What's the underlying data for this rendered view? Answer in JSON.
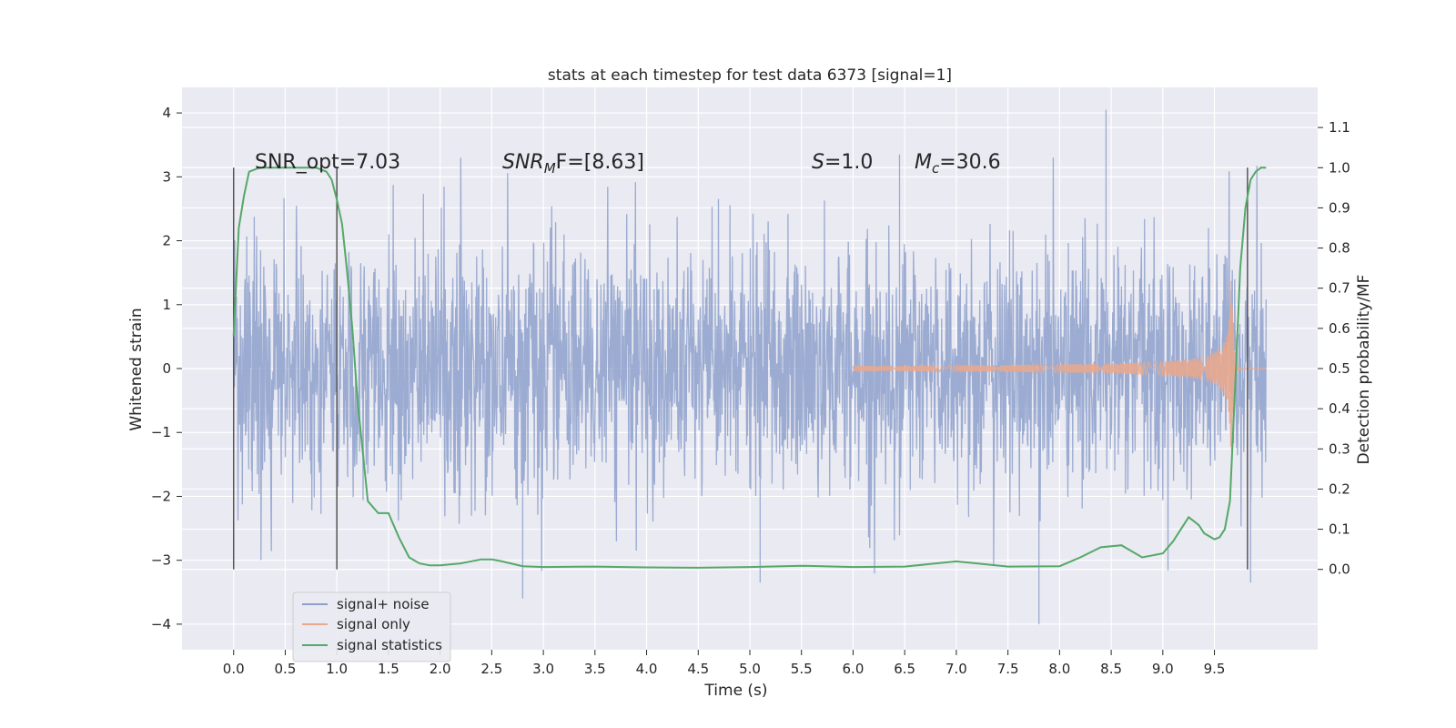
{
  "chart_data": {
    "type": "line",
    "title": "stats at each timestep for test data 6373 [signal=1]",
    "xlabel": "Time (s)",
    "ylabel": "Whitened strain",
    "ylabel_right": "Detection probability/MF",
    "xlim": [
      -0.5,
      10.5
    ],
    "ylim": [
      -4.4,
      4.4
    ],
    "ylim_right": [
      -0.2,
      1.2
    ],
    "x_ticks": [
      "0.0",
      "0.5",
      "1.0",
      "1.5",
      "2.0",
      "2.5",
      "3.0",
      "3.5",
      "4.0",
      "4.5",
      "5.0",
      "5.5",
      "6.0",
      "6.5",
      "7.0",
      "7.5",
      "8.0",
      "8.5",
      "9.0",
      "9.5"
    ],
    "x_tick_values": [
      0,
      0.5,
      1,
      1.5,
      2,
      2.5,
      3,
      3.5,
      4,
      4.5,
      5,
      5.5,
      6,
      6.5,
      7,
      7.5,
      8,
      8.5,
      9,
      9.5
    ],
    "y_ticks": [
      "4",
      "3",
      "2",
      "1",
      "0",
      "−1",
      "−2",
      "−3",
      "−4"
    ],
    "y_tick_values": [
      4,
      3,
      2,
      1,
      0,
      -1,
      -2,
      -3,
      -4
    ],
    "y_right_ticks": [
      "0.0",
      "0.1",
      "0.2",
      "0.3",
      "0.4",
      "0.5",
      "0.6",
      "0.7",
      "0.8",
      "0.9",
      "1.0",
      "1.1"
    ],
    "y_right_tick_values": [
      0,
      0.1,
      0.2,
      0.3,
      0.4,
      0.5,
      0.6,
      0.7,
      0.8,
      0.9,
      1.0,
      1.1
    ],
    "grid": true,
    "legend_position": "lower-left",
    "annotations": {
      "snr_opt": "SNR_opt=7.03",
      "snr_mf_base": "SNR",
      "snr_mf_sub": "M",
      "snr_mf_rest": "F=[8.63]",
      "s_var": "S",
      "s_rest": "=1.0",
      "mc_var": "M",
      "mc_sub": "c",
      "mc_rest": "=30.6"
    },
    "vertical_markers": [
      0.0,
      1.0,
      9.82
    ],
    "series": [
      {
        "name": "signal+ noise",
        "axis": "left",
        "color": "#8da0cb",
        "description_range": [
          0,
          10
        ],
        "typical_amplitude": 1.3,
        "peak_max": 4.05,
        "peak_min": -4.0
      },
      {
        "name": "signal only",
        "axis": "left",
        "color": "#e8a98e",
        "chirp_start": 6.0,
        "chirp_peak_time": 9.67,
        "chirp_peak_amplitude": 1.4
      },
      {
        "name": "signal statistics",
        "axis": "right",
        "color": "#55a868",
        "x": [
          0.0,
          0.05,
          0.1,
          0.15,
          0.25,
          0.4,
          0.6,
          0.8,
          0.9,
          0.95,
          1.0,
          1.05,
          1.1,
          1.15,
          1.2,
          1.3,
          1.4,
          1.5,
          1.6,
          1.7,
          1.8,
          1.9,
          2.0,
          2.2,
          2.4,
          2.5,
          2.6,
          2.8,
          3.0,
          3.5,
          4.0,
          4.5,
          5.0,
          5.5,
          6.0,
          6.5,
          7.0,
          7.2,
          7.5,
          8.0,
          8.2,
          8.4,
          8.6,
          8.8,
          8.9,
          9.0,
          9.1,
          9.2,
          9.25,
          9.3,
          9.35,
          9.4,
          9.5,
          9.55,
          9.6,
          9.65,
          9.7,
          9.75,
          9.8,
          9.85,
          9.9,
          9.95,
          10.0
        ],
        "y": [
          0.58,
          0.85,
          0.93,
          0.99,
          1.0,
          1.0,
          1.0,
          1.0,
          0.99,
          0.97,
          0.92,
          0.86,
          0.74,
          0.6,
          0.42,
          0.17,
          0.14,
          0.14,
          0.08,
          0.03,
          0.015,
          0.01,
          0.01,
          0.015,
          0.025,
          0.025,
          0.02,
          0.008,
          0.006,
          0.007,
          0.005,
          0.004,
          0.006,
          0.009,
          0.006,
          0.007,
          0.02,
          0.015,
          0.007,
          0.008,
          0.03,
          0.055,
          0.06,
          0.03,
          0.035,
          0.04,
          0.07,
          0.11,
          0.13,
          0.12,
          0.11,
          0.09,
          0.075,
          0.08,
          0.1,
          0.17,
          0.45,
          0.75,
          0.9,
          0.97,
          0.99,
          1.0,
          1.0
        ]
      }
    ]
  }
}
